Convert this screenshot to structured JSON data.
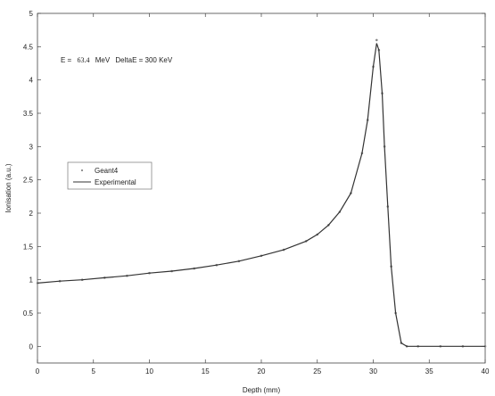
{
  "chart_data": {
    "type": "scatter",
    "title": "",
    "xlabel": "Depth (mm)",
    "ylabel": "Ionisation (a.u.)",
    "xlim": [
      0,
      40
    ],
    "ylim": [
      -0.25,
      5
    ],
    "xticks": [
      0,
      5,
      10,
      15,
      20,
      25,
      30,
      35,
      40
    ],
    "yticks": [
      0,
      0.5,
      1,
      1.5,
      2,
      2.5,
      3,
      3.5,
      4,
      4.5,
      5
    ],
    "grid": false,
    "legend_position": "left-middle",
    "annotation": {
      "label_e": "E =",
      "e_value": "63.4",
      "e_unit": "MeV",
      "label_delta": "DeltaE = 300 KeV"
    },
    "series": [
      {
        "name": "Geant4",
        "marker": "point",
        "color": "#888888",
        "x": [
          0,
          2,
          4,
          6,
          8,
          10,
          12,
          14,
          16,
          18,
          20,
          22,
          24,
          25,
          26,
          27,
          28,
          29,
          29.5,
          30,
          30.3,
          30.5,
          30.8,
          31,
          31.3,
          31.6,
          32,
          32.5,
          33,
          34,
          36,
          38,
          40
        ],
        "y": [
          0.95,
          0.98,
          1.0,
          1.03,
          1.06,
          1.1,
          1.13,
          1.17,
          1.22,
          1.28,
          1.36,
          1.45,
          1.58,
          1.68,
          1.82,
          2.02,
          2.3,
          2.9,
          3.4,
          4.2,
          4.6,
          4.45,
          3.8,
          3.0,
          2.1,
          1.2,
          0.5,
          0.05,
          0.0,
          0.0,
          0.0,
          0.0,
          0.0
        ]
      },
      {
        "name": "Experimental",
        "marker": "line",
        "color": "#333333",
        "x": [
          0,
          2,
          4,
          6,
          8,
          10,
          12,
          14,
          16,
          18,
          20,
          22,
          24,
          25,
          26,
          27,
          28,
          29,
          29.5,
          30,
          30.3,
          30.5,
          30.8,
          31,
          31.3,
          31.6,
          32,
          32.5,
          33,
          34,
          36,
          38,
          40
        ],
        "y": [
          0.95,
          0.98,
          1.0,
          1.03,
          1.06,
          1.1,
          1.13,
          1.17,
          1.22,
          1.28,
          1.36,
          1.45,
          1.58,
          1.68,
          1.82,
          2.02,
          2.3,
          2.9,
          3.4,
          4.2,
          4.55,
          4.45,
          3.8,
          3.0,
          2.1,
          1.2,
          0.5,
          0.05,
          0.0,
          0.0,
          0.0,
          0.0,
          0.0
        ]
      }
    ]
  }
}
